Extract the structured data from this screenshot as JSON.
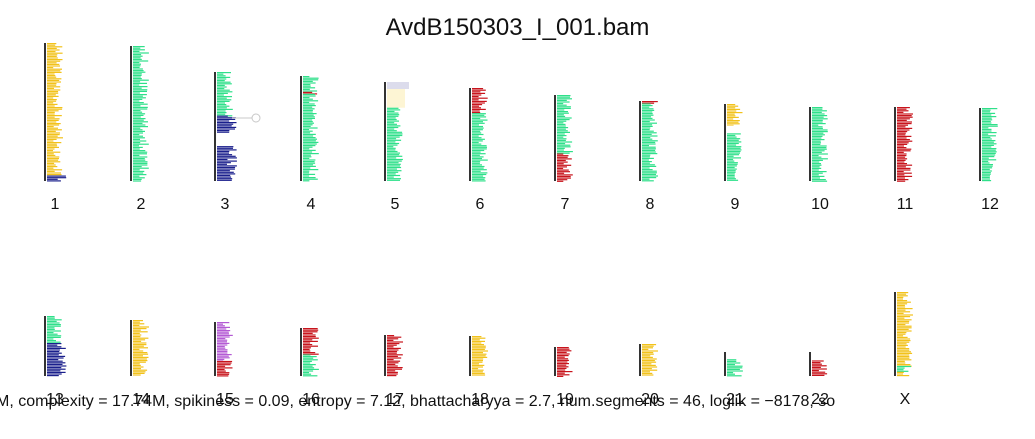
{
  "title": "AvdB150303_I_001.bam",
  "stats_line": "M, complexity = 17.74M,  spikiness = 0.09,  entropy = 7.12,  bhattacharyya = 2.7, num.segments = 46, loglik = −8178, so",
  "colors": {
    "axis": "#333333",
    "cn1": "#1a1f8c",
    "cn2": "#2fe08a",
    "cn3": "#f2c21b",
    "cn4": "#c8141c",
    "cn0": "#ffffff",
    "cn5": "#b45ad4",
    "ghost_box": "#fdf5d4",
    "ghost_box2": "#dcdcec"
  },
  "chromosomes": [
    {
      "name": "1",
      "segments": [
        {
          "from": 0.0,
          "to": 0.59,
          "state": "cn3"
        },
        {
          "from": 0.59,
          "to": 0.96,
          "state": "cn3"
        },
        {
          "from": 0.96,
          "to": 1.0,
          "state": "cn1"
        }
      ]
    },
    {
      "name": "2",
      "segments": [
        {
          "from": 0.0,
          "to": 1.0,
          "state": "cn2"
        }
      ]
    },
    {
      "name": "3",
      "segments": [
        {
          "from": 0.0,
          "to": 0.4,
          "state": "cn2"
        },
        {
          "from": 0.4,
          "to": 0.56,
          "state": "cn1"
        },
        {
          "from": 0.56,
          "to": 0.68,
          "state": "cn0"
        },
        {
          "from": 0.68,
          "to": 1.0,
          "state": "cn1"
        }
      ]
    },
    {
      "name": "4",
      "segments": [
        {
          "from": 0.0,
          "to": 0.15,
          "state": "cn2"
        },
        {
          "from": 0.15,
          "to": 0.17,
          "state": "cn4"
        },
        {
          "from": 0.17,
          "to": 1.0,
          "state": "cn2"
        }
      ]
    },
    {
      "name": "5",
      "segments": [
        {
          "from": 0.0,
          "to": 0.26,
          "state": "cn0"
        },
        {
          "from": 0.26,
          "to": 1.0,
          "state": "cn2"
        }
      ]
    },
    {
      "name": "6",
      "segments": [
        {
          "from": 0.0,
          "to": 0.27,
          "state": "cn4"
        },
        {
          "from": 0.27,
          "to": 1.0,
          "state": "cn2"
        }
      ]
    },
    {
      "name": "7",
      "segments": [
        {
          "from": 0.0,
          "to": 0.68,
          "state": "cn2"
        },
        {
          "from": 0.68,
          "to": 1.0,
          "state": "cn4"
        }
      ]
    },
    {
      "name": "8",
      "segments": [
        {
          "from": 0.0,
          "to": 0.03,
          "state": "cn4"
        },
        {
          "from": 0.03,
          "to": 1.0,
          "state": "cn2"
        }
      ]
    },
    {
      "name": "9",
      "segments": [
        {
          "from": 0.0,
          "to": 0.28,
          "state": "cn3"
        },
        {
          "from": 0.28,
          "to": 0.38,
          "state": "cn0"
        },
        {
          "from": 0.38,
          "to": 1.0,
          "state": "cn2"
        }
      ]
    },
    {
      "name": "10",
      "segments": [
        {
          "from": 0.0,
          "to": 1.0,
          "state": "cn2"
        }
      ]
    },
    {
      "name": "11",
      "segments": [
        {
          "from": 0.0,
          "to": 1.0,
          "state": "cn4"
        }
      ]
    },
    {
      "name": "12",
      "segments": [
        {
          "from": 0.0,
          "to": 1.0,
          "state": "cn2"
        }
      ]
    },
    {
      "name": "13",
      "segments": [
        {
          "from": 0.0,
          "to": 0.45,
          "state": "cn2"
        },
        {
          "from": 0.45,
          "to": 1.0,
          "state": "cn1"
        }
      ]
    },
    {
      "name": "14",
      "segments": [
        {
          "from": 0.0,
          "to": 1.0,
          "state": "cn3"
        }
      ]
    },
    {
      "name": "15",
      "segments": [
        {
          "from": 0.0,
          "to": 0.72,
          "state": "cn5"
        },
        {
          "from": 0.72,
          "to": 1.0,
          "state": "cn4"
        }
      ]
    },
    {
      "name": "16",
      "segments": [
        {
          "from": 0.0,
          "to": 0.55,
          "state": "cn4"
        },
        {
          "from": 0.55,
          "to": 1.0,
          "state": "cn2"
        }
      ]
    },
    {
      "name": "17",
      "segments": [
        {
          "from": 0.0,
          "to": 1.0,
          "state": "cn4"
        }
      ]
    },
    {
      "name": "18",
      "segments": [
        {
          "from": 0.0,
          "to": 1.0,
          "state": "cn3"
        }
      ]
    },
    {
      "name": "19",
      "segments": [
        {
          "from": 0.0,
          "to": 1.0,
          "state": "cn4"
        }
      ]
    },
    {
      "name": "20",
      "segments": [
        {
          "from": 0.0,
          "to": 1.0,
          "state": "cn3"
        }
      ]
    },
    {
      "name": "21",
      "segments": [
        {
          "from": 0.0,
          "to": 0.3,
          "state": "cn0"
        },
        {
          "from": 0.3,
          "to": 1.0,
          "state": "cn2"
        }
      ]
    },
    {
      "name": "22",
      "segments": [
        {
          "from": 0.0,
          "to": 0.35,
          "state": "cn0"
        },
        {
          "from": 0.35,
          "to": 1.0,
          "state": "cn4"
        }
      ]
    },
    {
      "name": "X",
      "segments": [
        {
          "from": 0.0,
          "to": 0.88,
          "state": "cn3"
        },
        {
          "from": 0.88,
          "to": 0.95,
          "state": "cn2"
        },
        {
          "from": 0.95,
          "to": 1.0,
          "state": "cn3"
        }
      ]
    }
  ]
}
